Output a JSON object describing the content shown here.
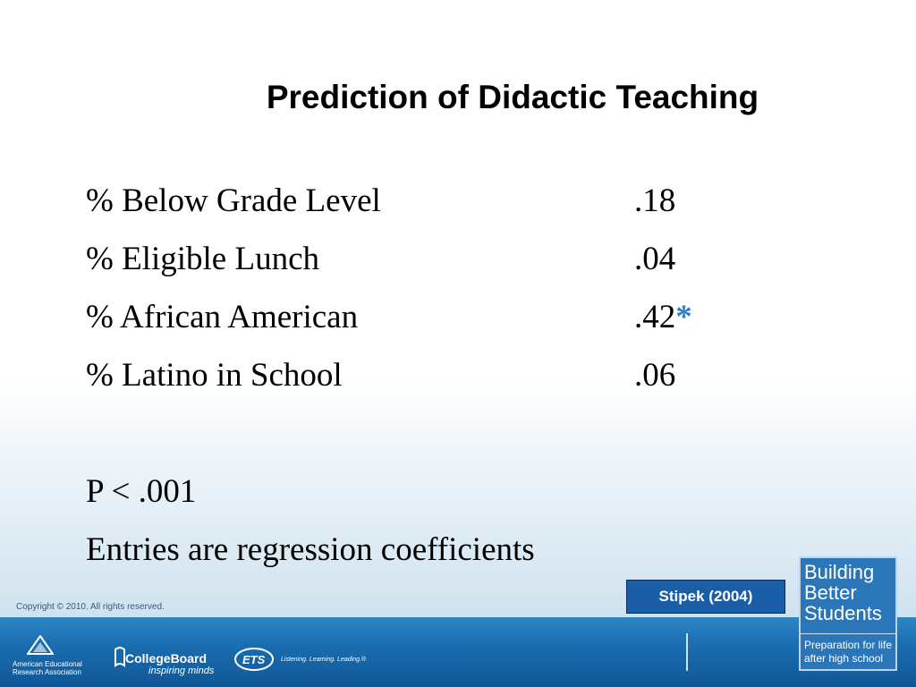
{
  "title": "Prediction of Didactic Teaching",
  "table": {
    "rows": [
      [
        "% Below Grade Level",
        ".18"
      ],
      [
        "% Eligible Lunch",
        ".04"
      ],
      [
        "% African American",
        ".42"
      ],
      [
        "% Latino in School",
        ".06"
      ]
    ]
  },
  "significance_marker": "*",
  "notes": [
    "P < .001",
    "Entries are regression coefficients"
  ],
  "citation": "Stipek (2004)",
  "footer": {
    "copyright": "Copyright © 2010. All rights reserved.",
    "logos": [
      "American Educational Research Association",
      "CollegeBoard",
      "inspiring minds",
      "ETS",
      "Listening. Learning. Leading.®"
    ],
    "brand": {
      "title": "Building Better Students",
      "subtitle": "Preparation for life after high school"
    }
  }
}
